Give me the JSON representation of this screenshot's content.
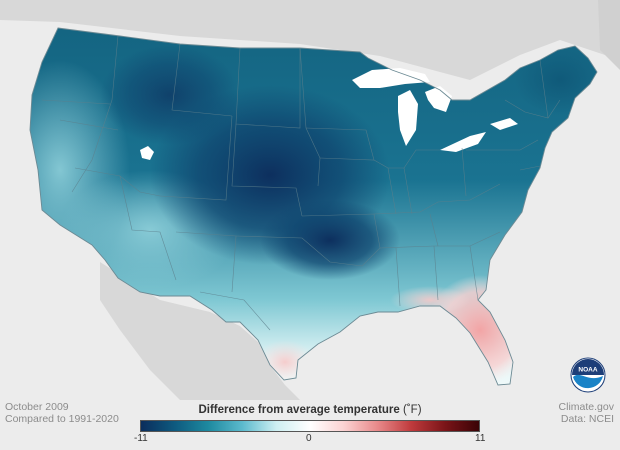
{
  "map": {
    "subject": "Difference from average temperature, contiguous United States",
    "month": "October 2009",
    "baseline": "Compared to 1991-2020"
  },
  "footer": {
    "date_label": "October 2009",
    "baseline_label": "Compared to 1991-2020",
    "credit": "Climate.gov",
    "source": "Data: NCEI"
  },
  "legend": {
    "title": "Difference from average temperature",
    "unit": "(˚F)",
    "min_label": "-11",
    "mid_label": "0",
    "max_label": "11",
    "min": -11,
    "max": 11,
    "colors": [
      "#0b2d5c",
      "#0e5a7f",
      "#1e8aa0",
      "#5cbacd",
      "#cdeff2",
      "#ffffff",
      "#fbd2d2",
      "#e8898a",
      "#bf3a3c",
      "#7a1418",
      "#3a0306"
    ]
  },
  "logo": {
    "text": "NOAA",
    "icon": "noaa-logo-icon"
  },
  "colors": {
    "background": "#ececec",
    "land_outside": "#d6d6d6",
    "water": "#ffffff",
    "state_border": "#5d7f8c"
  }
}
